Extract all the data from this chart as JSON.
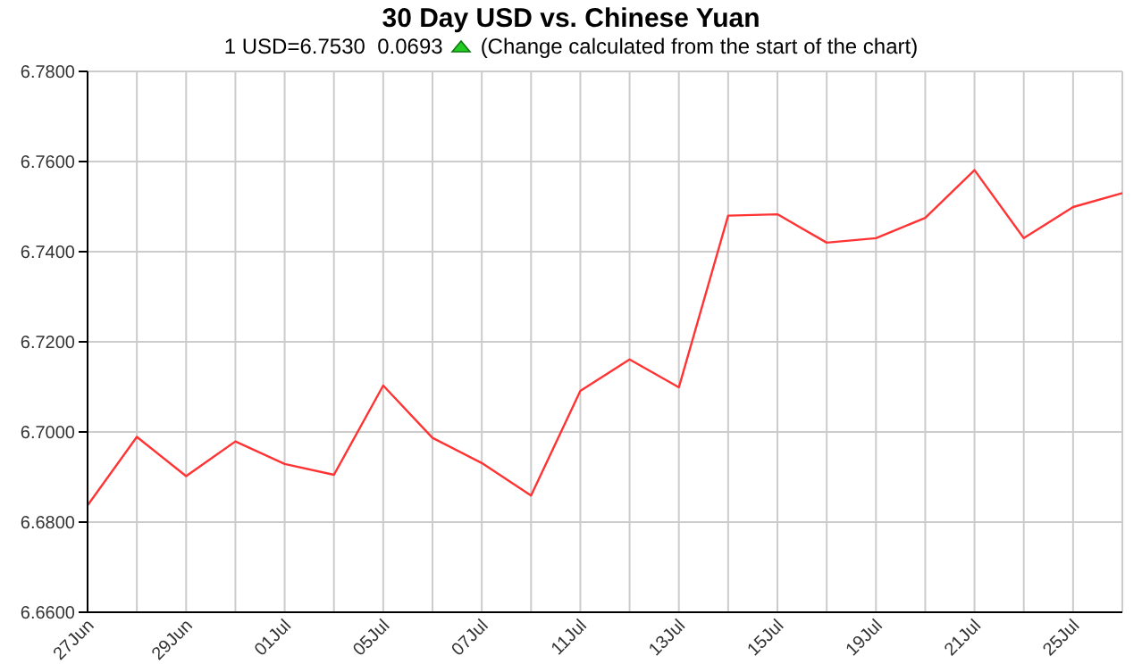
{
  "chart_data": {
    "type": "line",
    "title": "30 Day USD vs. Chinese Yuan",
    "subtitle": "1 USD=6.7530  0.0693",
    "annotations": [
      "(Change calculated from the start of the chart)"
    ],
    "categories": [
      "27Jun",
      null,
      "29Jun",
      null,
      "01Jul",
      null,
      "05Jul",
      null,
      "07Jul",
      null,
      "11Jul",
      null,
      "13Jul",
      null,
      "15Jul",
      null,
      "19Jul",
      null,
      "21Jul",
      null,
      "25Jul",
      null
    ],
    "series": [
      {
        "color": "#ff3333",
        "values": [
          6.6837,
          6.6989,
          6.6902,
          6.6979,
          6.6929,
          6.6905,
          6.7103,
          6.6987,
          6.6931,
          6.6859,
          6.7091,
          6.7161,
          6.7099,
          6.748,
          6.7483,
          6.742,
          6.743,
          6.7475,
          6.7581,
          6.743,
          6.7499,
          6.753
        ]
      }
    ],
    "ylim": [
      6.66,
      6.78
    ],
    "yticks": [
      {
        "value": 6.66,
        "label": "6.6600"
      },
      {
        "value": 6.68,
        "label": "6.6800"
      },
      {
        "value": 6.7,
        "label": "6.7000"
      },
      {
        "value": 6.72,
        "label": "6.7200"
      },
      {
        "value": 6.74,
        "label": "6.7400"
      },
      {
        "value": 6.76,
        "label": "6.7600"
      },
      {
        "value": 6.78,
        "label": "6.7800"
      }
    ],
    "grid": true,
    "legend": false,
    "marker": "none",
    "line_style": "solid"
  }
}
